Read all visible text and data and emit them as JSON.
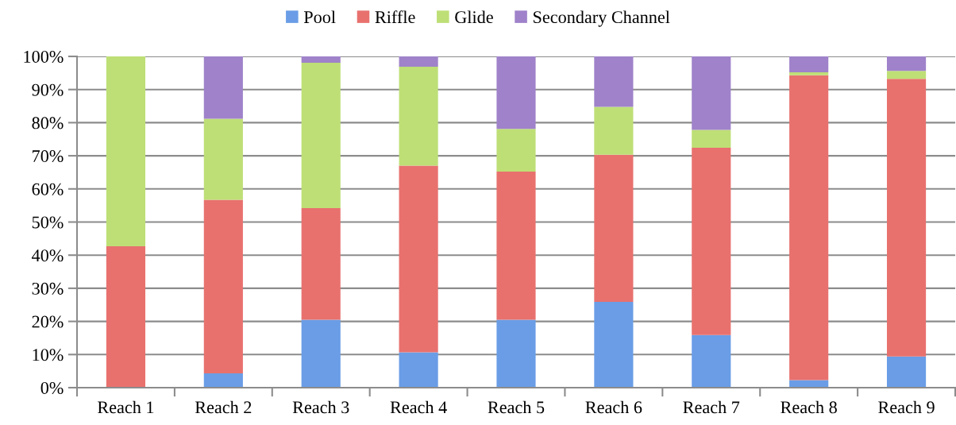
{
  "chart_data": {
    "type": "bar",
    "stacked": true,
    "legend": "top",
    "grid": "y",
    "categories": [
      "Reach 1",
      "Reach 2",
      "Reach 3",
      "Reach 4",
      "Reach 5",
      "Reach 6",
      "Reach 7",
      "Reach 8",
      "Reach 9"
    ],
    "series": [
      {
        "name": "Pool",
        "color": "#6a9de6",
        "values": [
          0,
          4.3,
          20.5,
          10.7,
          20.5,
          25.9,
          15.9,
          2.3,
          9.4
        ]
      },
      {
        "name": "Riffle",
        "color": "#e8716e",
        "values": [
          42.7,
          52.4,
          33.7,
          56.3,
          44.7,
          44.4,
          56.5,
          92.0,
          83.8
        ]
      },
      {
        "name": "Glide",
        "color": "#bedf76",
        "values": [
          57.3,
          24.5,
          43.9,
          29.9,
          12.9,
          14.5,
          5.4,
          0.9,
          2.4
        ]
      },
      {
        "name": "Secondary Channel",
        "color": "#9f82ca",
        "values": [
          0,
          18.8,
          1.9,
          3.1,
          21.9,
          15.2,
          22.2,
          4.8,
          4.4
        ]
      }
    ],
    "ylim": [
      0,
      100
    ],
    "yticks": [
      {
        "value": 0,
        "label": "0%"
      },
      {
        "value": 10,
        "label": "10%"
      },
      {
        "value": 20,
        "label": "20%"
      },
      {
        "value": 30,
        "label": "30%"
      },
      {
        "value": 40,
        "label": "40%"
      },
      {
        "value": 50,
        "label": "50%"
      },
      {
        "value": 60,
        "label": "60%"
      },
      {
        "value": 70,
        "label": "70%"
      },
      {
        "value": 80,
        "label": "80%"
      },
      {
        "value": 90,
        "label": "90%"
      },
      {
        "value": 100,
        "label": "100%"
      }
    ]
  }
}
